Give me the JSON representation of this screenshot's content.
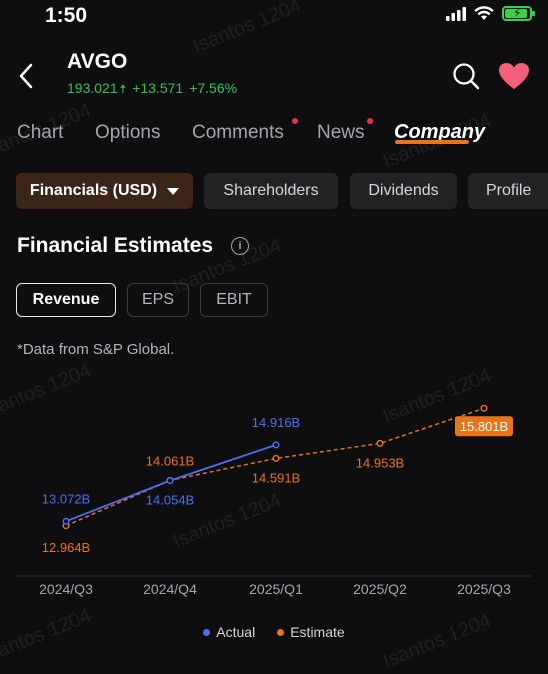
{
  "status": {
    "time": "1:50"
  },
  "header": {
    "ticker": "AVGO",
    "price": "193.021",
    "price_arrow": "🠅",
    "change": "+13.571",
    "change_pct": "+7.56%"
  },
  "tabs": [
    {
      "label": "Chart"
    },
    {
      "label": "Options"
    },
    {
      "label": "Comments"
    },
    {
      "label": "News"
    },
    {
      "label": "Company"
    }
  ],
  "chips": {
    "financials": "Financials (USD)",
    "shareholders": "Shareholders",
    "dividends": "Dividends",
    "profile": "Profile"
  },
  "section": {
    "title": "Financial Estimates",
    "info_glyph": "i"
  },
  "segments": [
    "Revenue",
    "EPS",
    "EBIT"
  ],
  "note": "*Data from S&P Global.",
  "watermark": "Isantos 1204",
  "colors": {
    "actual": "#4c6ef5",
    "estimate": "#e8741c",
    "accent": "#e8741c",
    "up": "#2fc25b"
  },
  "chart_data": {
    "type": "line",
    "categories": [
      "2024/Q3",
      "2024/Q4",
      "2025/Q1",
      "2025/Q2",
      "2025/Q3"
    ],
    "series": [
      {
        "name": "Actual",
        "values": [
          13.072,
          14.054,
          14.916,
          null,
          null
        ],
        "labels": [
          "13.072B",
          "14.054B",
          "14.916B",
          "",
          ""
        ]
      },
      {
        "name": "Estimate",
        "values": [
          12.964,
          14.061,
          14.591,
          14.953,
          15.801
        ],
        "labels": [
          "12.964B",
          "14.061B",
          "14.591B",
          "14.953B",
          "15.801B"
        ]
      }
    ],
    "highlight_label": "15.801B"
  }
}
